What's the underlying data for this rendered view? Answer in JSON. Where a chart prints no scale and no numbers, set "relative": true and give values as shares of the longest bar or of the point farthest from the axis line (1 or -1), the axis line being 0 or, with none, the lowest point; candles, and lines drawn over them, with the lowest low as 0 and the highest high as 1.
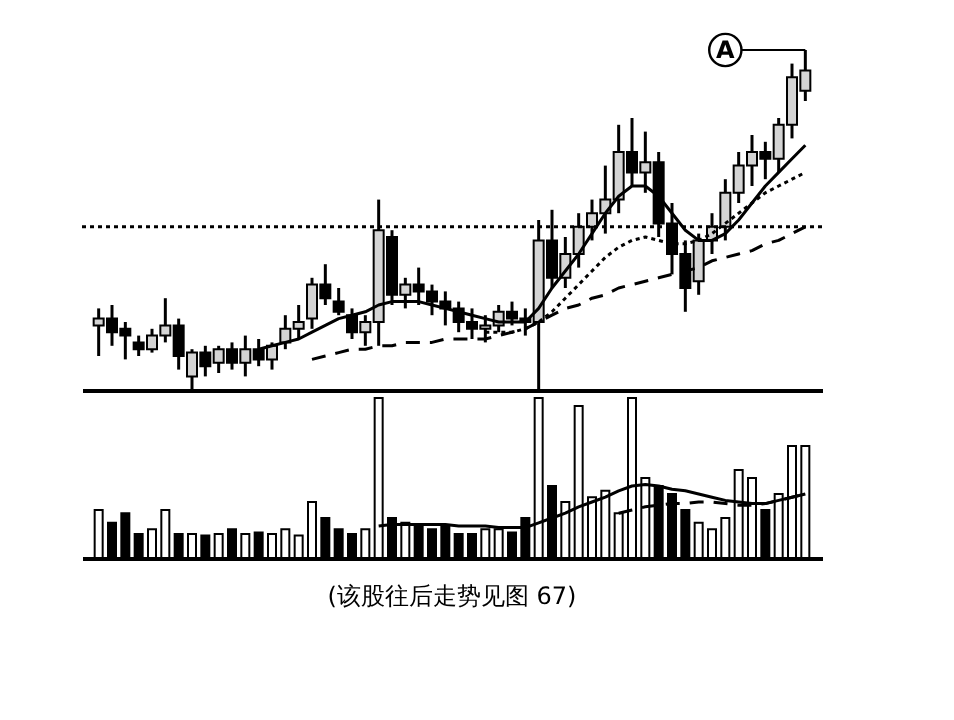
{
  "chart_data": [
    {
      "type": "candlestick",
      "relative": true,
      "tick_labels": false,
      "categories": [
        null,
        null,
        null,
        null,
        null,
        null,
        null,
        null,
        null,
        null,
        null,
        null,
        null,
        null,
        null,
        null,
        null,
        null,
        null,
        null,
        null,
        null,
        null,
        null,
        null,
        null,
        null,
        null,
        null,
        null,
        null,
        null,
        null,
        null,
        null,
        null,
        null,
        null,
        null,
        null,
        null,
        null,
        null,
        null,
        null,
        null,
        null,
        null,
        null,
        null,
        null,
        null,
        null,
        null
      ],
      "ohlc": [
        [
          0.19,
          0.24,
          0.1,
          0.21
        ],
        [
          0.21,
          0.25,
          0.13,
          0.17
        ],
        [
          0.18,
          0.2,
          0.09,
          0.16
        ],
        [
          0.14,
          0.16,
          0.1,
          0.12
        ],
        [
          0.12,
          0.18,
          0.11,
          0.16
        ],
        [
          0.16,
          0.27,
          0.14,
          0.19
        ],
        [
          0.19,
          0.21,
          0.06,
          0.1
        ],
        [
          0.04,
          0.12,
          0.0,
          0.11
        ],
        [
          0.11,
          0.13,
          0.04,
          0.07
        ],
        [
          0.08,
          0.13,
          0.05,
          0.12
        ],
        [
          0.12,
          0.14,
          0.06,
          0.08
        ],
        [
          0.08,
          0.16,
          0.04,
          0.12
        ],
        [
          0.12,
          0.15,
          0.07,
          0.09
        ],
        [
          0.09,
          0.14,
          0.06,
          0.13
        ],
        [
          0.14,
          0.22,
          0.12,
          0.18
        ],
        [
          0.18,
          0.25,
          0.15,
          0.2
        ],
        [
          0.21,
          0.33,
          0.18,
          0.31
        ],
        [
          0.31,
          0.37,
          0.25,
          0.27
        ],
        [
          0.26,
          0.3,
          0.22,
          0.23
        ],
        [
          0.22,
          0.24,
          0.15,
          0.17
        ],
        [
          0.17,
          0.22,
          0.13,
          0.2
        ],
        [
          0.2,
          0.56,
          0.13,
          0.47
        ],
        [
          0.45,
          0.47,
          0.25,
          0.28
        ],
        [
          0.28,
          0.33,
          0.24,
          0.31
        ],
        [
          0.31,
          0.36,
          0.25,
          0.29
        ],
        [
          0.29,
          0.31,
          0.22,
          0.26
        ],
        [
          0.26,
          0.29,
          0.19,
          0.24
        ],
        [
          0.24,
          0.26,
          0.17,
          0.2
        ],
        [
          0.2,
          0.24,
          0.15,
          0.18
        ],
        [
          0.18,
          0.22,
          0.14,
          0.19
        ],
        [
          0.19,
          0.25,
          0.17,
          0.23
        ],
        [
          0.23,
          0.26,
          0.19,
          0.21
        ],
        [
          0.21,
          0.24,
          0.16,
          0.2
        ],
        [
          0.2,
          0.5,
          0.0,
          0.44
        ],
        [
          0.44,
          0.53,
          0.3,
          0.33
        ],
        [
          0.33,
          0.45,
          0.3,
          0.4
        ],
        [
          0.4,
          0.52,
          0.36,
          0.48
        ],
        [
          0.48,
          0.56,
          0.44,
          0.52
        ],
        [
          0.52,
          0.66,
          0.46,
          0.56
        ],
        [
          0.56,
          0.78,
          0.52,
          0.7
        ],
        [
          0.7,
          0.8,
          0.6,
          0.64
        ],
        [
          0.64,
          0.76,
          0.58,
          0.67
        ],
        [
          0.67,
          0.7,
          0.45,
          0.49
        ],
        [
          0.49,
          0.55,
          0.34,
          0.4
        ],
        [
          0.4,
          0.44,
          0.23,
          0.3
        ],
        [
          0.32,
          0.46,
          0.28,
          0.44
        ],
        [
          0.44,
          0.52,
          0.4,
          0.48
        ],
        [
          0.48,
          0.62,
          0.44,
          0.58
        ],
        [
          0.58,
          0.7,
          0.55,
          0.66
        ],
        [
          0.66,
          0.75,
          0.6,
          0.7
        ],
        [
          0.7,
          0.73,
          0.62,
          0.68
        ],
        [
          0.68,
          0.8,
          0.64,
          0.78
        ],
        [
          0.78,
          0.96,
          0.74,
          0.92
        ],
        [
          0.88,
          1.0,
          0.85,
          0.94
        ]
      ],
      "series": [
        {
          "type": "line",
          "color": "#000000",
          "line_style": "solid",
          "values": [
            null,
            null,
            null,
            null,
            null,
            null,
            null,
            null,
            null,
            null,
            null,
            null,
            0.12,
            0.13,
            0.14,
            0.15,
            0.17,
            0.19,
            0.21,
            0.22,
            0.23,
            0.25,
            0.26,
            0.26,
            0.26,
            0.25,
            0.24,
            0.23,
            0.22,
            0.21,
            0.2,
            0.2,
            0.2,
            0.24,
            0.3,
            0.35,
            0.4,
            0.46,
            0.52,
            0.57,
            0.6,
            0.6,
            0.57,
            0.52,
            0.47,
            0.44,
            0.44,
            0.46,
            0.5,
            0.55,
            0.6,
            0.64,
            0.68,
            0.72
          ]
        },
        {
          "type": "line",
          "color": "#000000",
          "line_style": "dotted",
          "values": [
            null,
            null,
            null,
            null,
            null,
            null,
            null,
            null,
            null,
            null,
            null,
            null,
            null,
            null,
            null,
            null,
            null,
            null,
            null,
            null,
            null,
            null,
            null,
            null,
            null,
            null,
            null,
            null,
            null,
            0.17,
            0.17,
            0.17,
            0.18,
            0.2,
            0.23,
            0.27,
            0.31,
            0.35,
            0.39,
            0.42,
            0.44,
            0.45,
            0.44,
            0.43,
            0.43,
            0.44,
            0.46,
            0.49,
            0.52,
            0.55,
            0.58,
            0.6,
            0.62,
            0.64
          ]
        },
        {
          "type": "line",
          "color": "#000000",
          "line_style": "dashed",
          "values": [
            null,
            null,
            null,
            null,
            null,
            null,
            null,
            null,
            null,
            null,
            null,
            null,
            null,
            null,
            null,
            null,
            0.09,
            0.1,
            0.11,
            0.12,
            0.12,
            0.13,
            0.13,
            0.14,
            0.14,
            0.14,
            0.15,
            0.15,
            0.15,
            0.15,
            0.16,
            0.17,
            0.18,
            0.2,
            0.22,
            0.24,
            0.25,
            0.27,
            0.28,
            0.3,
            0.31,
            0.32,
            0.33,
            0.34,
            0.35,
            0.36,
            0.38,
            0.39,
            0.4,
            0.41,
            0.43,
            0.44,
            0.46,
            0.48
          ]
        }
      ],
      "ref_lines": [
        {
          "axis": "y",
          "value": 0.48,
          "line_style": "dotted",
          "color": "#000000"
        }
      ],
      "annotations": [
        {
          "text": "A",
          "y": 1.0
        }
      ]
    },
    {
      "type": "bar",
      "relative": true,
      "tick_labels": false,
      "categories": [
        null,
        null,
        null,
        null,
        null,
        null,
        null,
        null,
        null,
        null,
        null,
        null,
        null,
        null,
        null,
        null,
        null,
        null,
        null,
        null,
        null,
        null,
        null,
        null,
        null,
        null,
        null,
        null,
        null,
        null,
        null,
        null,
        null,
        null,
        null,
        null,
        null,
        null,
        null,
        null,
        null,
        null,
        null,
        null,
        null,
        null,
        null,
        null,
        null,
        null,
        null,
        null,
        null,
        null
      ],
      "series": [
        {
          "type": "bar",
          "values": [
            0.3,
            0.22,
            0.28,
            0.15,
            0.18,
            0.3,
            0.15,
            0.15,
            0.14,
            0.15,
            0.18,
            0.15,
            0.16,
            0.15,
            0.18,
            0.14,
            0.35,
            0.25,
            0.18,
            0.15,
            0.18,
            1.0,
            0.25,
            0.22,
            0.2,
            0.18,
            0.2,
            0.15,
            0.15,
            0.18,
            0.18,
            0.16,
            0.25,
            1.0,
            0.45,
            0.35,
            0.95,
            0.38,
            0.42,
            0.28,
            1.0,
            0.5,
            0.45,
            0.4,
            0.3,
            0.22,
            0.18,
            0.25,
            0.55,
            0.5,
            0.3,
            0.4,
            0.7,
            0.7
          ],
          "colors": [
            "#ffffff",
            "#000000",
            "#000000",
            "#000000",
            "#ffffff",
            "#ffffff",
            "#000000",
            "#ffffff",
            "#000000",
            "#ffffff",
            "#000000",
            "#ffffff",
            "#000000",
            "#ffffff",
            "#ffffff",
            "#ffffff",
            "#ffffff",
            "#000000",
            "#000000",
            "#000000",
            "#ffffff",
            "#ffffff",
            "#000000",
            "#ffffff",
            "#000000",
            "#000000",
            "#000000",
            "#000000",
            "#000000",
            "#ffffff",
            "#ffffff",
            "#000000",
            "#000000",
            "#ffffff",
            "#000000",
            "#ffffff",
            "#ffffff",
            "#ffffff",
            "#ffffff",
            "#ffffff",
            "#ffffff",
            "#ffffff",
            "#000000",
            "#000000",
            "#000000",
            "#ffffff",
            "#ffffff",
            "#ffffff",
            "#ffffff",
            "#ffffff",
            "#000000",
            "#ffffff",
            "#ffffff",
            "#ffffff"
          ]
        },
        {
          "type": "line",
          "color": "#000000",
          "line_style": "solid",
          "values": [
            null,
            null,
            null,
            null,
            null,
            null,
            null,
            null,
            null,
            null,
            null,
            null,
            null,
            null,
            null,
            null,
            null,
            null,
            null,
            null,
            null,
            0.2,
            0.21,
            0.21,
            0.21,
            0.21,
            0.21,
            0.2,
            0.2,
            0.2,
            0.19,
            0.19,
            0.19,
            0.22,
            0.25,
            0.28,
            0.32,
            0.35,
            0.38,
            0.42,
            0.45,
            0.46,
            0.45,
            0.43,
            0.42,
            0.4,
            0.38,
            0.36,
            0.35,
            0.34,
            0.34,
            0.36,
            0.38,
            0.4
          ]
        },
        {
          "type": "line",
          "color": "#000000",
          "line_style": "dashed",
          "values": [
            null,
            null,
            null,
            null,
            null,
            null,
            null,
            null,
            null,
            null,
            null,
            null,
            null,
            null,
            null,
            null,
            null,
            null,
            null,
            null,
            null,
            null,
            null,
            null,
            null,
            null,
            null,
            null,
            null,
            null,
            null,
            null,
            null,
            null,
            null,
            null,
            null,
            null,
            null,
            0.28,
            0.3,
            0.32,
            0.33,
            0.34,
            0.34,
            0.35,
            0.35,
            0.34,
            0.33,
            0.33,
            0.34,
            0.36,
            0.38,
            0.4
          ]
        }
      ],
      "annotations": [
        "(该股往后走势见图 67)"
      ]
    }
  ]
}
